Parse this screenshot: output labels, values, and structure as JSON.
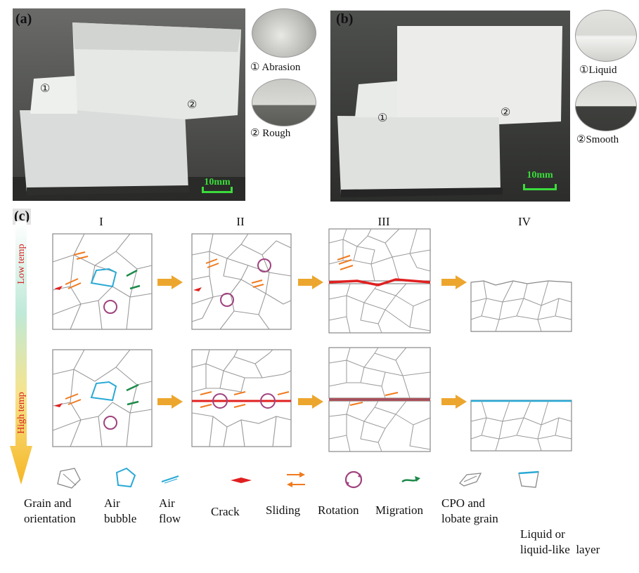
{
  "panels": {
    "a": {
      "label": "(a)",
      "marker1": "①",
      "marker2": "②",
      "scale_bar": "10mm",
      "callout1": "① Abrasion",
      "callout2": "② Rough"
    },
    "b": {
      "label": "(b)",
      "marker1": "①",
      "marker2": "②",
      "scale_bar": "10mm",
      "callout1": "①Liquid",
      "callout2": "②Smooth"
    },
    "c": {
      "label": "(c)",
      "stages": [
        "I",
        "II",
        "III",
        "IV"
      ],
      "temp_low": "Low temp",
      "temp_high": "High temp"
    }
  },
  "legend": [
    {
      "icon": "grain-orientation-icon",
      "line1": "Grain and",
      "line2": "orientation"
    },
    {
      "icon": "air-bubble-icon",
      "line1": "Air",
      "line2": "bubble"
    },
    {
      "icon": "air-flow-icon",
      "line1": "Air",
      "line2": "flow"
    },
    {
      "icon": "crack-icon",
      "line1": "Crack",
      "line2": ""
    },
    {
      "icon": "sliding-icon",
      "line1": "Sliding",
      "line2": ""
    },
    {
      "icon": "rotation-icon",
      "line1": "Rotation",
      "line2": ""
    },
    {
      "icon": "migration-icon",
      "line1": "Migration",
      "line2": ""
    },
    {
      "icon": "cpo-lobate-grain-icon",
      "line1": "CPO and",
      "line2": "lobate grain"
    },
    {
      "icon": "liquid-layer-icon",
      "line1": "Liquid or",
      "line2": "liquid-like  layer"
    }
  ],
  "colors": {
    "grain_line": "#9a9a9a",
    "bubble": "#29a9d6",
    "crack": "#e02020",
    "sliding": "#f07a1e",
    "rotation": "#a0427f",
    "migration": "#1e8a4a",
    "arrow": "#eca62e",
    "temp_text": "#d42222"
  }
}
